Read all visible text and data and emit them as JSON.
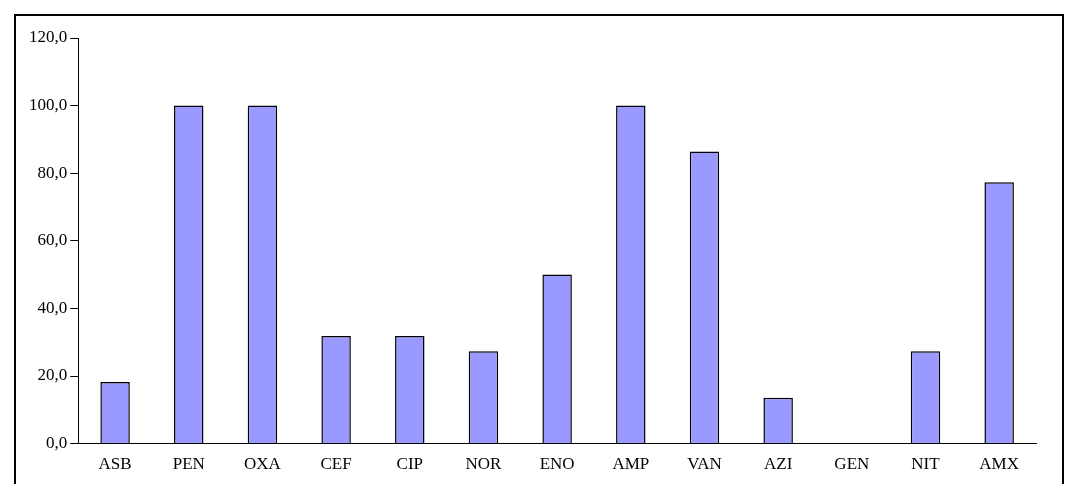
{
  "chart_data": {
    "type": "bar",
    "categories": [
      "ASB",
      "PEN",
      "OXA",
      "CEF",
      "CIP",
      "NOR",
      "ENO",
      "AMP",
      "VAN",
      "AZI",
      "GEN",
      "NIT",
      "AMX"
    ],
    "values": [
      18.2,
      100,
      100,
      31.8,
      31.8,
      27.3,
      50,
      100,
      86.4,
      13.6,
      0,
      27.3,
      77.3
    ],
    "color": "#9999ff",
    "ylim": [
      0,
      120
    ],
    "yticks": [
      {
        "value": 0,
        "label": "0,0"
      },
      {
        "value": 20,
        "label": "20,0"
      },
      {
        "value": 40,
        "label": "40,0"
      },
      {
        "value": 60,
        "label": "60,0"
      },
      {
        "value": 80,
        "label": "80,0"
      },
      {
        "value": 100,
        "label": "100,0"
      },
      {
        "value": 120,
        "label": "120,0"
      }
    ],
    "grid": false,
    "legend": false
  }
}
